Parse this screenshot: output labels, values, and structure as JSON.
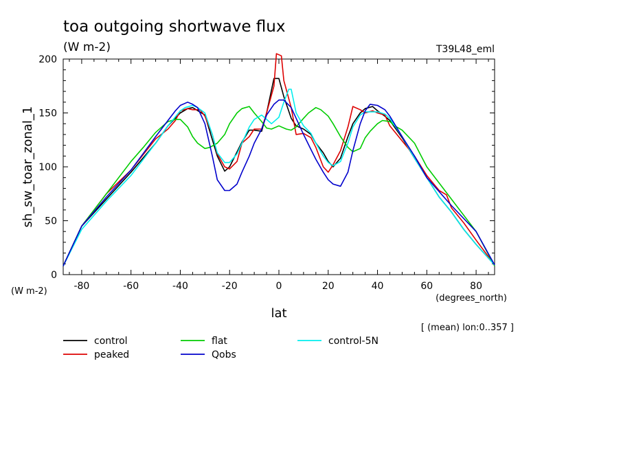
{
  "chart_data": {
    "type": "line",
    "title": "toa outgoing shortwave flux",
    "title_units": "(W m-2)",
    "experiment_tag": "T39L48_eml",
    "xlabel": "lat",
    "xunits": "(degrees_north)",
    "ylabel": "sh_sw_toar_zonal_1",
    "yunits": "(W m-2)",
    "averaging_note": "[ (mean) lon:0..357 ]",
    "xlim": [
      -87.5,
      87.5
    ],
    "ylim": [
      0,
      200
    ],
    "xticks": [
      -80,
      -60,
      -40,
      -20,
      0,
      20,
      40,
      60,
      80
    ],
    "xtick_labels": [
      "-80",
      "-60",
      "-40",
      "-20",
      "0",
      "20",
      "40",
      "60",
      "80"
    ],
    "yticks": [
      0,
      50,
      100,
      150,
      200
    ],
    "ytick_labels": [
      "0",
      "50",
      "100",
      "150",
      "200"
    ],
    "grid": false,
    "legend_position": "bottom",
    "series": [
      {
        "name": "control",
        "color": "#000000",
        "x": [
          -87.5,
          -80,
          -70,
          -60,
          -50,
          -45,
          -40,
          -37,
          -35,
          -30,
          -25,
          -22,
          -20,
          -15,
          -12,
          -10,
          -7,
          -5,
          -2,
          0,
          2,
          5,
          7,
          10,
          13,
          15,
          18,
          20,
          22,
          25,
          28,
          30,
          33,
          35,
          38,
          40,
          43,
          45,
          50,
          55,
          60,
          65,
          70,
          75,
          80,
          87.5
        ],
        "y": [
          8,
          45,
          70,
          95,
          122,
          138,
          150,
          154,
          155,
          148,
          110,
          96,
          100,
          123,
          134,
          134,
          133,
          150,
          182,
          182,
          165,
          145,
          138,
          135,
          130,
          122,
          113,
          105,
          100,
          108,
          128,
          140,
          150,
          154,
          156,
          152,
          147,
          143,
          127,
          108,
          90,
          72,
          58,
          42,
          28,
          9
        ]
      },
      {
        "name": "peaked",
        "color": "#dd0000",
        "x": [
          -87.5,
          -80,
          -70,
          -60,
          -50,
          -45,
          -42,
          -40,
          -37,
          -35,
          -32,
          -30,
          -27,
          -25,
          -22,
          -20,
          -17,
          -15,
          -12,
          -10,
          -7,
          -5,
          -2,
          -1,
          1,
          2,
          5,
          7,
          10,
          13,
          15,
          18,
          20,
          22,
          25,
          28,
          30,
          33,
          35,
          38,
          40,
          43,
          45,
          50,
          55,
          60,
          65,
          68,
          70,
          75,
          80,
          87.5
        ],
        "y": [
          8,
          45,
          75,
          97,
          126,
          135,
          143,
          152,
          154,
          153,
          153,
          147,
          130,
          112,
          100,
          98,
          105,
          122,
          128,
          135,
          135,
          150,
          175,
          205,
          203,
          180,
          155,
          130,
          131,
          127,
          118,
          100,
          95,
          102,
          115,
          137,
          156,
          153,
          150,
          152,
          150,
          148,
          138,
          124,
          110,
          92,
          78,
          74,
          62,
          48,
          32,
          9
        ]
      },
      {
        "name": "flat",
        "color": "#00cc00",
        "x": [
          -87.5,
          -80,
          -70,
          -60,
          -55,
          -50,
          -47,
          -45,
          -42,
          -40,
          -37,
          -35,
          -33,
          -30,
          -28,
          -25,
          -22,
          -20,
          -17,
          -15,
          -12,
          -10,
          -7,
          -5,
          -3,
          0,
          3,
          5,
          7,
          10,
          12,
          15,
          17,
          20,
          22,
          25,
          28,
          30,
          33,
          35,
          37,
          40,
          42,
          45,
          47,
          50,
          55,
          60,
          70,
          80,
          87.5
        ],
        "y": [
          8,
          45,
          75,
          105,
          118,
          132,
          138,
          142,
          144,
          144,
          137,
          128,
          122,
          117,
          118,
          122,
          130,
          140,
          150,
          154,
          156,
          150,
          142,
          136,
          135,
          138,
          135,
          134,
          137,
          145,
          150,
          155,
          153,
          147,
          140,
          128,
          118,
          114,
          117,
          127,
          133,
          140,
          143,
          142,
          138,
          134,
          122,
          100,
          70,
          40,
          8
        ]
      },
      {
        "name": "control-5N",
        "color": "#00eeee",
        "x": [
          -87.5,
          -80,
          -70,
          -60,
          -50,
          -45,
          -40,
          -38,
          -35,
          -33,
          -30,
          -27,
          -25,
          -22,
          -20,
          -17,
          -15,
          -12,
          -10,
          -7,
          -5,
          -3,
          0,
          2,
          4,
          5,
          7,
          10,
          13,
          15,
          18,
          20,
          22,
          25,
          28,
          30,
          33,
          35,
          38,
          40,
          43,
          45,
          50,
          55,
          60,
          65,
          70,
          75,
          80,
          87.5
        ],
        "y": [
          8,
          42,
          68,
          92,
          122,
          138,
          152,
          155,
          157,
          155,
          150,
          130,
          113,
          104,
          104,
          112,
          122,
          137,
          144,
          148,
          144,
          140,
          146,
          160,
          172,
          172,
          150,
          138,
          131,
          122,
          110,
          104,
          101,
          105,
          122,
          137,
          148,
          151,
          151,
          151,
          149,
          145,
          128,
          108,
          90,
          72,
          58,
          42,
          28,
          9
        ]
      },
      {
        "name": "Qobs",
        "color": "#0000cc",
        "x": [
          -87.5,
          -80,
          -70,
          -60,
          -50,
          -45,
          -42,
          -40,
          -37,
          -35,
          -33,
          -30,
          -27,
          -25,
          -22,
          -20,
          -17,
          -15,
          -12,
          -10,
          -7,
          -5,
          -2,
          0,
          2,
          5,
          7,
          10,
          13,
          15,
          18,
          20,
          22,
          25,
          28,
          30,
          33,
          35,
          37,
          40,
          43,
          45,
          50,
          55,
          60,
          70,
          80,
          87.5
        ],
        "y": [
          8,
          45,
          72,
          97,
          128,
          143,
          152,
          157,
          160,
          158,
          155,
          140,
          110,
          88,
          78,
          78,
          84,
          95,
          110,
          122,
          135,
          148,
          158,
          162,
          162,
          155,
          145,
          130,
          116,
          107,
          95,
          88,
          84,
          82,
          95,
          115,
          140,
          152,
          158,
          157,
          153,
          147,
          128,
          110,
          90,
          64,
          40,
          9
        ]
      }
    ]
  }
}
